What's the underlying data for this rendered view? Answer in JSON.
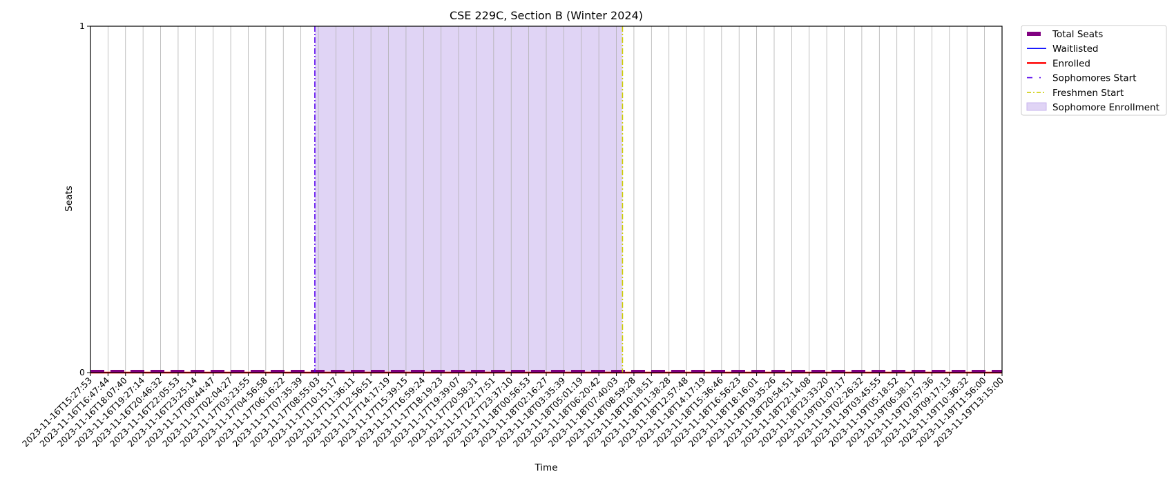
{
  "chart_data": {
    "type": "line",
    "title": "CSE 229C, Section B (Winter 2024)",
    "xlabel": "Time",
    "ylabel": "Seats",
    "ylim": [
      0,
      1
    ],
    "yticks": [
      "0",
      "1"
    ],
    "grid": "vertical",
    "legend_position": "outside-top-right",
    "categories": [
      "2023-11-16T15:27:53",
      "2023-11-16T16:47:44",
      "2023-11-16T18:07:40",
      "2023-11-16T19:27:14",
      "2023-11-16T20:46:32",
      "2023-11-16T22:05:53",
      "2023-11-16T23:25:14",
      "2023-11-17T00:44:47",
      "2023-11-17T02:04:27",
      "2023-11-17T03:23:55",
      "2023-11-17T04:56:58",
      "2023-11-17T06:16:22",
      "2023-11-17T07:35:39",
      "2023-11-17T08:55:03",
      "2023-11-17T10:15:17",
      "2023-11-17T11:36:11",
      "2023-11-17T12:56:51",
      "2023-11-17T14:17:19",
      "2023-11-17T15:39:15",
      "2023-11-17T16:59:24",
      "2023-11-17T18:19:23",
      "2023-11-17T19:39:07",
      "2023-11-17T20:58:31",
      "2023-11-17T22:17:51",
      "2023-11-17T23:37:10",
      "2023-11-18T00:56:53",
      "2023-11-18T02:16:27",
      "2023-11-18T03:35:39",
      "2023-11-18T05:01:19",
      "2023-11-18T06:20:42",
      "2023-11-18T07:40:03",
      "2023-11-18T08:59:28",
      "2023-11-18T10:18:51",
      "2023-11-18T11:38:28",
      "2023-11-18T12:57:48",
      "2023-11-18T14:17:19",
      "2023-11-18T15:36:46",
      "2023-11-18T16:56:23",
      "2023-11-18T18:16:01",
      "2023-11-18T19:35:26",
      "2023-11-18T20:54:51",
      "2023-11-18T22:14:08",
      "2023-11-18T23:33:20",
      "2023-11-19T01:07:17",
      "2023-11-19T02:26:32",
      "2023-11-19T03:45:55",
      "2023-11-19T05:18:52",
      "2023-11-19T06:38:17",
      "2023-11-19T07:57:36",
      "2023-11-19T09:17:13",
      "2023-11-19T10:36:32",
      "2023-11-19T11:56:00",
      "2023-11-19T13:15:00"
    ],
    "series": [
      {
        "name": "Total Seats",
        "color": "#800080",
        "style": "dashed-thick",
        "values": [
          0,
          0,
          0,
          0,
          0,
          0,
          0,
          0,
          0,
          0,
          0,
          0,
          0,
          0,
          0,
          0,
          0,
          0,
          0,
          0,
          0,
          0,
          0,
          0,
          0,
          0,
          0,
          0,
          0,
          0,
          0,
          0,
          0,
          0,
          0,
          0,
          0,
          0,
          0,
          0,
          0,
          0,
          0,
          0,
          0,
          0,
          0,
          0,
          0,
          0,
          0,
          0,
          0
        ]
      },
      {
        "name": "Waitlisted",
        "color": "#0000ff",
        "style": "solid",
        "values": [
          0,
          0,
          0,
          0,
          0,
          0,
          0,
          0,
          0,
          0,
          0,
          0,
          0,
          0,
          0,
          0,
          0,
          0,
          0,
          0,
          0,
          0,
          0,
          0,
          0,
          0,
          0,
          0,
          0,
          0,
          0,
          0,
          0,
          0,
          0,
          0,
          0,
          0,
          0,
          0,
          0,
          0,
          0,
          0,
          0,
          0,
          0,
          0,
          0,
          0,
          0,
          0,
          0
        ]
      },
      {
        "name": "Enrolled",
        "color": "#ff0000",
        "style": "solid-thick",
        "values": [
          0,
          0,
          0,
          0,
          0,
          0,
          0,
          0,
          0,
          0,
          0,
          0,
          0,
          0,
          0,
          0,
          0,
          0,
          0,
          0,
          0,
          0,
          0,
          0,
          0,
          0,
          0,
          0,
          0,
          0,
          0,
          0,
          0,
          0,
          0,
          0,
          0,
          0,
          0,
          0,
          0,
          0,
          0,
          0,
          0,
          0,
          0,
          0,
          0,
          0,
          0,
          0,
          0
        ]
      }
    ],
    "markers": [
      {
        "name": "Sophomores Start",
        "color": "#5500ee",
        "style": "dashdot",
        "x_index": 12.8
      },
      {
        "name": "Freshmen Start",
        "color": "#cccc00",
        "style": "dashdot",
        "x_index": 30.35
      }
    ],
    "spans": [
      {
        "name": "Sophomore Enrollment",
        "color": "#e0d4f5",
        "edge": "#c9b6ee",
        "start_index": 12.8,
        "end_index": 30.35
      }
    ],
    "legend": [
      "Total Seats",
      "Waitlisted",
      "Enrolled",
      "Sophomores Start",
      "Freshmen Start",
      "Sophomore Enrollment"
    ]
  }
}
